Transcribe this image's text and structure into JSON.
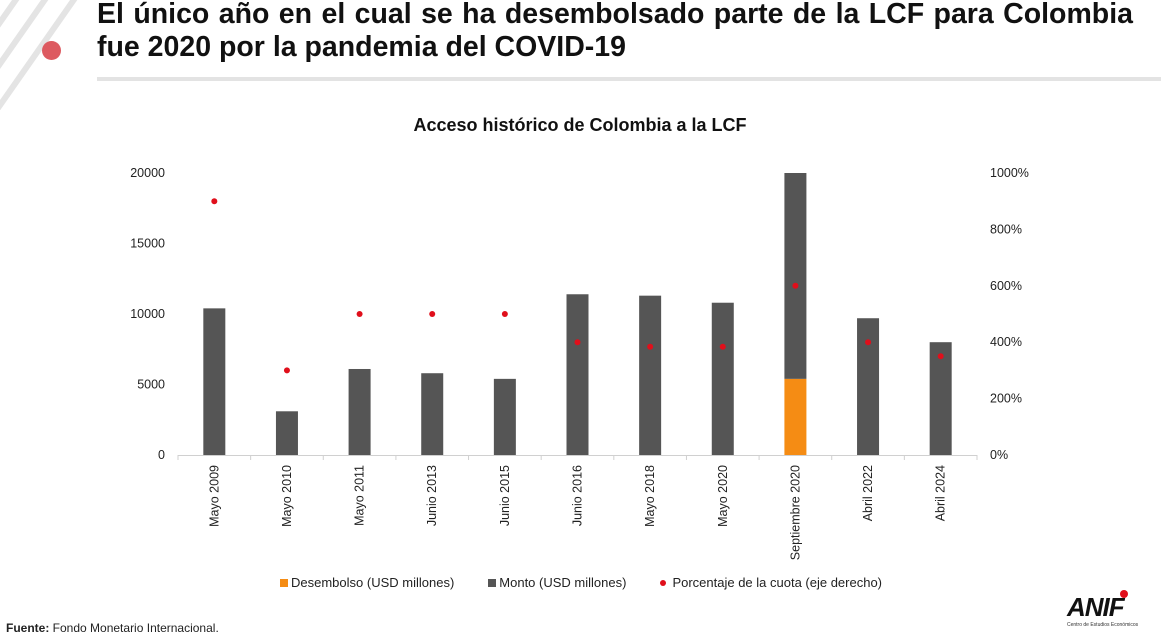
{
  "header": {
    "headline": "El único año en el cual se ha desembolsado parte de la LCF para Colombia fue 2020 por la pandemia del COVID-19"
  },
  "chart_data": {
    "type": "bar",
    "title": "Acceso histórico de Colombia a la LCF",
    "categories": [
      "Mayo 2009",
      "Mayo 2010",
      "Mayo 2011",
      "Junio 2013",
      "Junio 2015",
      "Junio 2016",
      "Mayo 2018",
      "Mayo 2020",
      "Septiembre 2020",
      "Abril 2022",
      "Abril 2024"
    ],
    "series": [
      {
        "name": "Desembolso (USD millones)",
        "kind": "bar",
        "axis": "left",
        "color": "#f58c14",
        "values": [
          0,
          0,
          0,
          0,
          0,
          0,
          0,
          0,
          5400,
          0,
          0
        ]
      },
      {
        "name": "Monto (USD millones)",
        "kind": "bar",
        "axis": "left",
        "color": "#555555",
        "values": [
          10400,
          3100,
          6100,
          5800,
          5400,
          11400,
          11300,
          10800,
          14600,
          9700,
          8000
        ]
      },
      {
        "name": "Porcentaje de la cuota (eje derecho)",
        "kind": "scatter",
        "axis": "right",
        "color": "#e00f1b",
        "values": [
          900,
          300,
          500,
          500,
          500,
          400,
          384,
          384,
          600,
          400,
          350
        ]
      }
    ],
    "stacked": true,
    "yleft": {
      "ticks": [
        "0",
        "5000",
        "10000",
        "15000",
        "20000"
      ],
      "range": [
        0,
        20000
      ]
    },
    "yright": {
      "ticks": [
        "0%",
        "200%",
        "400%",
        "600%",
        "800%",
        "1000%"
      ],
      "range": [
        0,
        1000
      ]
    },
    "grid": false,
    "legend_position": "bottom"
  },
  "legend": {
    "desembolso": "Desembolso (USD millones)",
    "monto": "Monto (USD millones)",
    "porcentaje": "Porcentaje de la cuota (eje derecho)"
  },
  "footer": {
    "source_label": "Fuente:",
    "source_text": " Fondo Monetario Internacional."
  },
  "logo": {
    "name": "ANIF",
    "subtitle": "Centro de Estudios Económicos"
  }
}
